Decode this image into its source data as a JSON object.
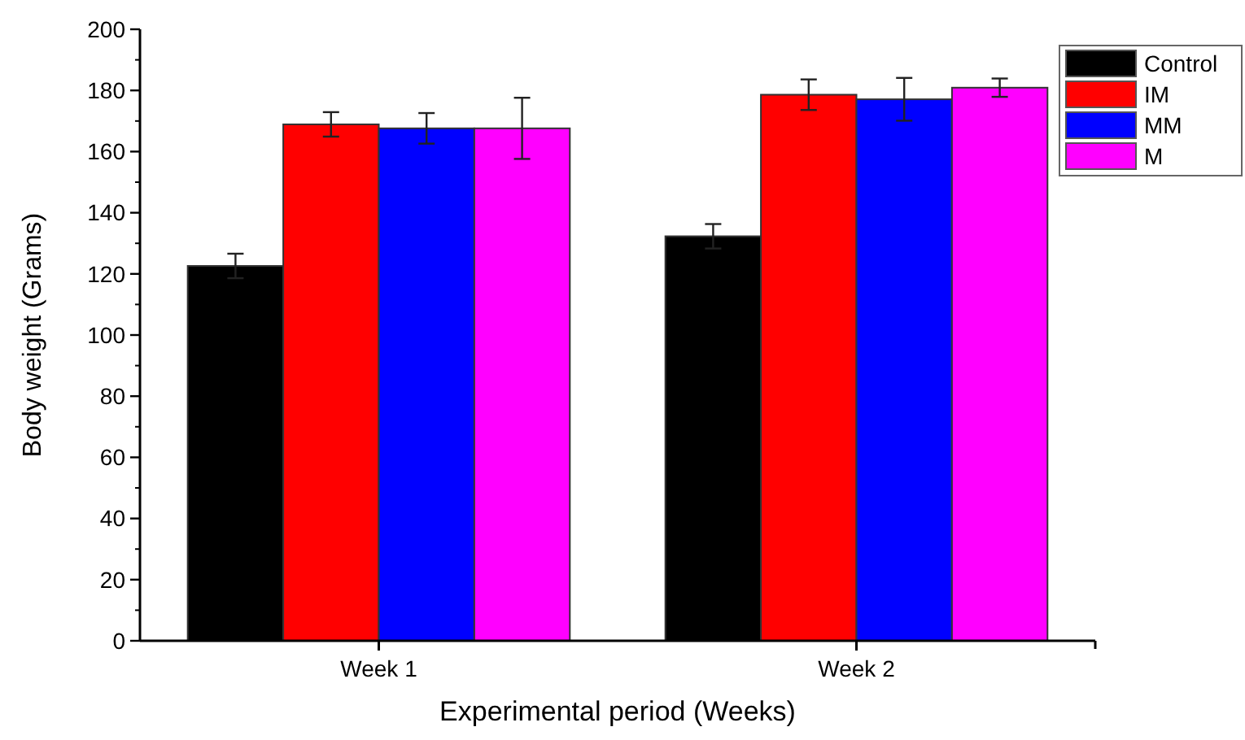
{
  "chart_data": {
    "type": "bar",
    "xlabel": "Experimental period (Weeks)",
    "ylabel": "Body weight (Grams)",
    "categories": [
      "Week 1",
      "Week 2"
    ],
    "series": [
      {
        "name": "Control",
        "color": "#000000",
        "values": [
          122.6,
          132.3
        ],
        "errors": [
          4,
          4
        ]
      },
      {
        "name": "IM",
        "color": "#ff0000",
        "values": [
          168.9,
          178.6
        ],
        "errors": [
          4,
          5
        ]
      },
      {
        "name": "MM",
        "color": "#0000ff",
        "values": [
          167.6,
          177.1
        ],
        "errors": [
          5,
          7
        ]
      },
      {
        "name": "M",
        "color": "#ff00ff",
        "values": [
          167.6,
          180.9
        ],
        "errors": [
          10,
          3
        ]
      }
    ],
    "ylim": [
      0,
      200
    ],
    "yticks": [
      0,
      20,
      40,
      60,
      80,
      100,
      120,
      140,
      160,
      180,
      200
    ],
    "grid": false,
    "legend": "top right"
  }
}
